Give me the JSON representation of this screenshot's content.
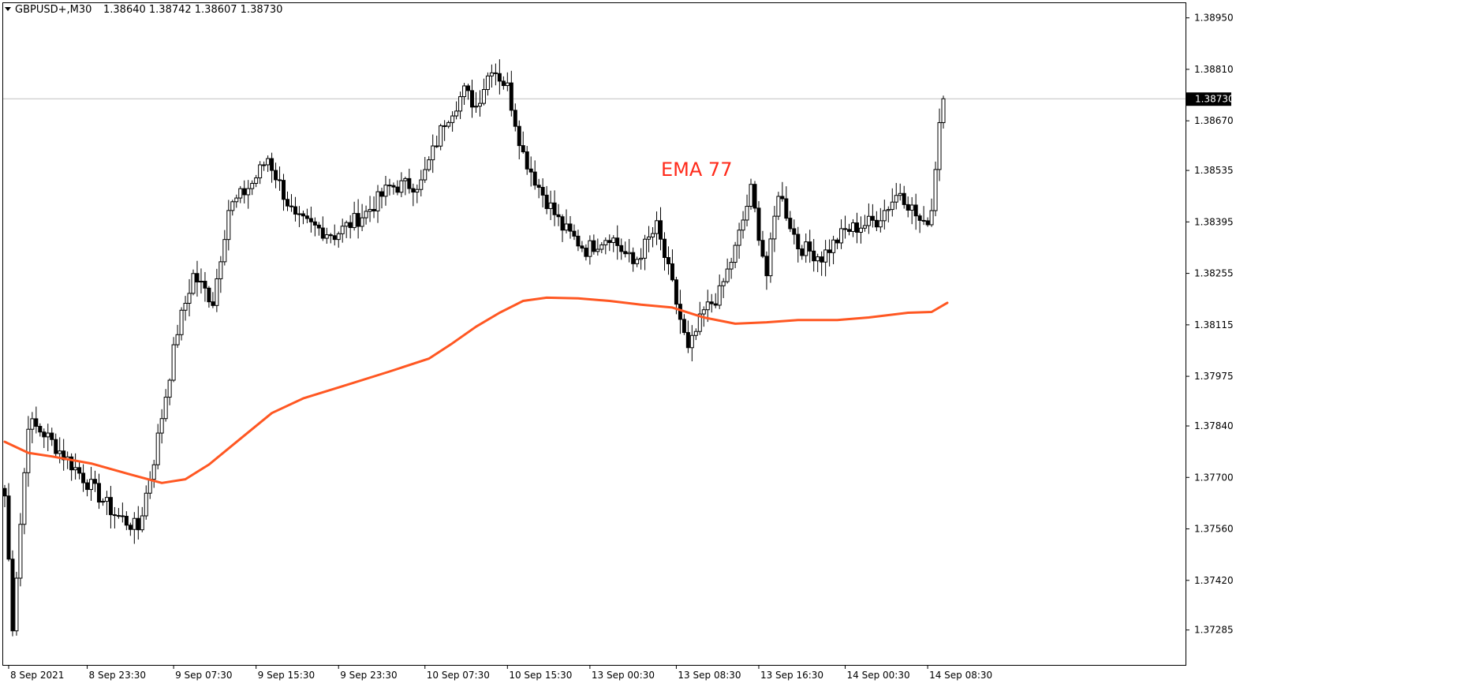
{
  "header": {
    "symbol": "GBPUSD+,M30",
    "ohlc": "1.38640 1.38742 1.38607 1.38730"
  },
  "annotation": {
    "text": "EMA 77"
  },
  "current_price": {
    "label": "1.38730",
    "value": 1.3873
  },
  "colors": {
    "background": "#ffffff",
    "axis": "#000000",
    "candle": "#000000",
    "ema": "#ff5722",
    "annotation": "#ff2a1a",
    "price_line": "#c0c0c0",
    "price_tag_bg": "#000000",
    "price_tag_text": "#ffffff"
  },
  "chart_data": {
    "type": "candlestick",
    "timeframe": "M30",
    "symbol": "GBPUSD+",
    "ylim": [
      1.3719,
      1.3899
    ],
    "y_ticks": [
      "1.38950",
      "1.38810",
      "1.38670",
      "1.38535",
      "1.38395",
      "1.38255",
      "1.38115",
      "1.37975",
      "1.37840",
      "1.37700",
      "1.37560",
      "1.37420",
      "1.37285"
    ],
    "x_ticks": [
      "8 Sep 2021",
      "8 Sep 23:30",
      "9 Sep 07:30",
      "9 Sep 15:30",
      "9 Sep 23:30",
      "10 Sep 07:30",
      "10 Sep 15:30",
      "13 Sep 00:30",
      "13 Sep 08:30",
      "13 Sep 16:30",
      "14 Sep 00:30",
      "14 Sep 08:30"
    ],
    "waypoints": [
      {
        "i": 0,
        "p": 1.3765
      },
      {
        "i": 2,
        "p": 1.373
      },
      {
        "i": 6,
        "p": 1.3785
      },
      {
        "i": 10,
        "p": 1.3782
      },
      {
        "i": 20,
        "p": 1.377
      },
      {
        "i": 28,
        "p": 1.376
      },
      {
        "i": 34,
        "p": 1.3756
      },
      {
        "i": 38,
        "p": 1.3775
      },
      {
        "i": 44,
        "p": 1.381
      },
      {
        "i": 48,
        "p": 1.3825
      },
      {
        "i": 53,
        "p": 1.3818
      },
      {
        "i": 57,
        "p": 1.3843
      },
      {
        "i": 63,
        "p": 1.385
      },
      {
        "i": 67,
        "p": 1.3857
      },
      {
        "i": 74,
        "p": 1.384
      },
      {
        "i": 84,
        "p": 1.3836
      },
      {
        "i": 92,
        "p": 1.3842
      },
      {
        "i": 98,
        "p": 1.3849
      },
      {
        "i": 106,
        "p": 1.385
      },
      {
        "i": 112,
        "p": 1.3867
      },
      {
        "i": 117,
        "p": 1.3875
      },
      {
        "i": 120,
        "p": 1.3871
      },
      {
        "i": 124,
        "p": 1.3882
      },
      {
        "i": 128,
        "p": 1.3876
      },
      {
        "i": 132,
        "p": 1.3858
      },
      {
        "i": 136,
        "p": 1.3849
      },
      {
        "i": 142,
        "p": 1.3838
      },
      {
        "i": 148,
        "p": 1.3832
      },
      {
        "i": 154,
        "p": 1.3836
      },
      {
        "i": 160,
        "p": 1.3828
      },
      {
        "i": 166,
        "p": 1.3838
      },
      {
        "i": 170,
        "p": 1.3822
      },
      {
        "i": 174,
        "p": 1.3804
      },
      {
        "i": 178,
        "p": 1.3815
      },
      {
        "i": 182,
        "p": 1.382
      },
      {
        "i": 186,
        "p": 1.3832
      },
      {
        "i": 190,
        "p": 1.3848
      },
      {
        "i": 194,
        "p": 1.3825
      },
      {
        "i": 197,
        "p": 1.3848
      },
      {
        "i": 202,
        "p": 1.3833
      },
      {
        "i": 208,
        "p": 1.383
      },
      {
        "i": 214,
        "p": 1.3837
      },
      {
        "i": 222,
        "p": 1.384
      },
      {
        "i": 228,
        "p": 1.3848
      },
      {
        "i": 234,
        "p": 1.3838
      },
      {
        "i": 236,
        "p": 1.3843
      },
      {
        "i": 238,
        "p": 1.3867
      },
      {
        "i": 239,
        "p": 1.3873
      }
    ],
    "series": [
      {
        "name": "EMA 77",
        "type": "line",
        "points": [
          {
            "i": 0,
            "p": 1.37797
          },
          {
            "i": 6,
            "p": 1.37767
          },
          {
            "i": 12,
            "p": 1.37757
          },
          {
            "i": 22,
            "p": 1.37738
          },
          {
            "i": 32,
            "p": 1.37708
          },
          {
            "i": 40,
            "p": 1.37685
          },
          {
            "i": 46,
            "p": 1.37695
          },
          {
            "i": 52,
            "p": 1.37735
          },
          {
            "i": 60,
            "p": 1.37805
          },
          {
            "i": 68,
            "p": 1.37875
          },
          {
            "i": 76,
            "p": 1.37915
          },
          {
            "i": 86,
            "p": 1.37948
          },
          {
            "i": 98,
            "p": 1.37988
          },
          {
            "i": 108,
            "p": 1.38023
          },
          {
            "i": 114,
            "p": 1.38065
          },
          {
            "i": 120,
            "p": 1.3811
          },
          {
            "i": 126,
            "p": 1.38148
          },
          {
            "i": 132,
            "p": 1.3818
          },
          {
            "i": 138,
            "p": 1.38189
          },
          {
            "i": 146,
            "p": 1.38187
          },
          {
            "i": 154,
            "p": 1.3818
          },
          {
            "i": 162,
            "p": 1.3817
          },
          {
            "i": 170,
            "p": 1.38162
          },
          {
            "i": 178,
            "p": 1.38135
          },
          {
            "i": 186,
            "p": 1.38118
          },
          {
            "i": 194,
            "p": 1.38122
          },
          {
            "i": 202,
            "p": 1.38128
          },
          {
            "i": 212,
            "p": 1.38128
          },
          {
            "i": 220,
            "p": 1.38135
          },
          {
            "i": 230,
            "p": 1.38148
          },
          {
            "i": 236,
            "p": 1.3815
          },
          {
            "i": 240,
            "p": 1.38175
          }
        ]
      }
    ]
  }
}
